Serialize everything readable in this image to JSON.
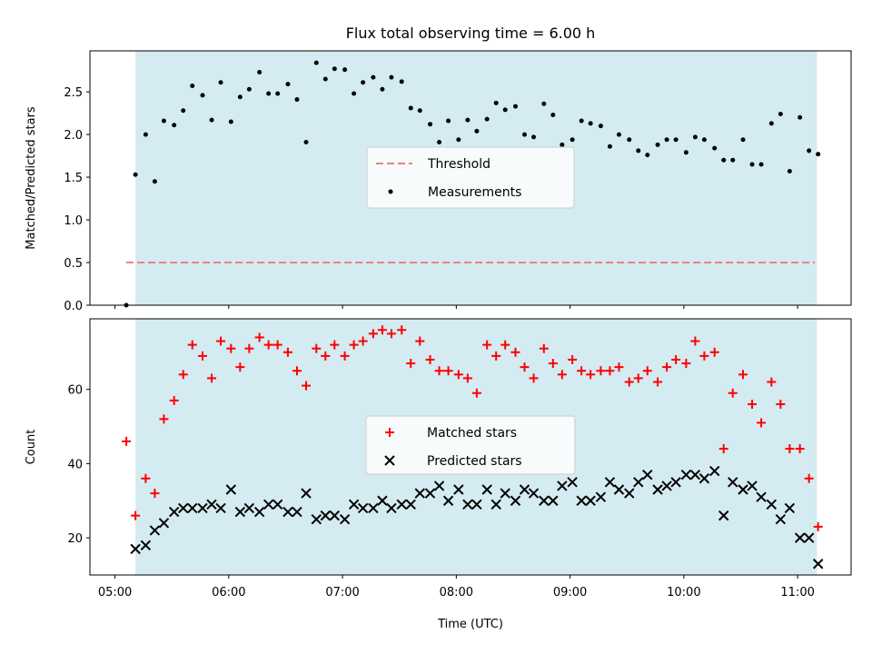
{
  "figure": {
    "title": "Flux total observing time = 6.00 h",
    "xlabel": "Time (UTC)",
    "x_ticks": [
      {
        "h": 5,
        "label": "05:00"
      },
      {
        "h": 6,
        "label": "06:00"
      },
      {
        "h": 7,
        "label": "07:00"
      },
      {
        "h": 8,
        "label": "08:00"
      },
      {
        "h": 9,
        "label": "09:00"
      },
      {
        "h": 10,
        "label": "10:00"
      },
      {
        "h": 11,
        "label": "11:00"
      }
    ],
    "shaded_interval": {
      "start": 5.18,
      "end": 11.17,
      "color": "#d4ebf1"
    }
  },
  "chart_data": [
    {
      "type": "scatter",
      "ylabel": "Matched/Predicted stars",
      "xlim": [
        4.78,
        11.47
      ],
      "ylim": [
        0,
        2.98
      ],
      "y_ticks": [
        {
          "v": 0.0,
          "label": "0.0"
        },
        {
          "v": 0.5,
          "label": "0.5"
        },
        {
          "v": 1.0,
          "label": "1.0"
        },
        {
          "v": 1.5,
          "label": "1.5"
        },
        {
          "v": 2.0,
          "label": "2.0"
        },
        {
          "v": 2.5,
          "label": "2.5"
        }
      ],
      "legend_position": "center",
      "threshold": {
        "name": "Threshold",
        "value": 0.5,
        "x_start": 5.1,
        "x_end": 11.15,
        "color": "#f08080"
      },
      "series": [
        {
          "name": "Measurements",
          "color": "#000000",
          "x": [
            5.1,
            5.18,
            5.27,
            5.35,
            5.43,
            5.52,
            5.6,
            5.68,
            5.77,
            5.85,
            5.93,
            6.02,
            6.1,
            6.18,
            6.27,
            6.35,
            6.43,
            6.52,
            6.6,
            6.68,
            6.77,
            6.85,
            6.93,
            7.02,
            7.1,
            7.18,
            7.27,
            7.35,
            7.43,
            7.52,
            7.6,
            7.68,
            7.77,
            7.85,
            7.93,
            8.02,
            8.1,
            8.18,
            8.27,
            8.35,
            8.43,
            8.52,
            8.6,
            8.68,
            8.77,
            8.85,
            8.93,
            9.02,
            9.1,
            9.18,
            9.27,
            9.35,
            9.43,
            9.52,
            9.6,
            9.68,
            9.77,
            9.85,
            9.93,
            10.02,
            10.1,
            10.18,
            10.27,
            10.35,
            10.43,
            10.52,
            10.6,
            10.68,
            10.77,
            10.85,
            10.93,
            11.02,
            11.1,
            11.18
          ],
          "y": [
            0.0,
            1.53,
            2.0,
            1.45,
            2.16,
            2.11,
            2.28,
            2.57,
            2.46,
            2.17,
            2.61,
            2.15,
            2.44,
            2.53,
            2.73,
            2.48,
            2.48,
            2.59,
            2.41,
            1.91,
            2.84,
            2.65,
            2.77,
            2.76,
            2.48,
            2.61,
            2.67,
            2.53,
            2.67,
            2.62,
            2.31,
            2.28,
            2.12,
            1.91,
            2.16,
            1.94,
            2.17,
            2.04,
            2.18,
            2.37,
            2.29,
            2.33,
            2.0,
            1.97,
            2.36,
            2.23,
            1.88,
            1.94,
            2.16,
            2.13,
            2.1,
            1.86,
            2.0,
            1.94,
            1.81,
            1.76,
            1.88,
            1.94,
            1.94,
            1.79,
            1.97,
            1.94,
            1.84,
            1.7,
            1.7,
            1.94,
            1.65,
            1.65,
            2.13,
            2.24,
            1.57,
            2.2,
            1.81,
            1.77
          ]
        }
      ]
    },
    {
      "type": "scatter",
      "ylabel": "Count",
      "xlim": [
        4.78,
        11.47
      ],
      "ylim": [
        10,
        79
      ],
      "y_ticks": [
        {
          "v": 20,
          "label": "20"
        },
        {
          "v": 40,
          "label": "40"
        },
        {
          "v": 60,
          "label": "60"
        }
      ],
      "legend_position": "center",
      "series": [
        {
          "name": "Matched stars",
          "marker": "plus",
          "color": "#ff0000",
          "x": [
            5.1,
            5.18,
            5.27,
            5.35,
            5.43,
            5.52,
            5.6,
            5.68,
            5.77,
            5.85,
            5.93,
            6.02,
            6.1,
            6.18,
            6.27,
            6.35,
            6.43,
            6.52,
            6.6,
            6.68,
            6.77,
            6.85,
            6.93,
            7.02,
            7.1,
            7.18,
            7.27,
            7.35,
            7.43,
            7.52,
            7.6,
            7.68,
            7.77,
            7.85,
            7.93,
            8.02,
            8.1,
            8.18,
            8.27,
            8.35,
            8.43,
            8.52,
            8.6,
            8.68,
            8.77,
            8.85,
            8.93,
            9.02,
            9.1,
            9.18,
            9.27,
            9.35,
            9.43,
            9.52,
            9.6,
            9.68,
            9.77,
            9.85,
            9.93,
            10.02,
            10.1,
            10.18,
            10.27,
            10.35,
            10.43,
            10.52,
            10.6,
            10.68,
            10.77,
            10.85,
            10.93,
            11.02,
            11.1,
            11.18
          ],
          "y": [
            46,
            26,
            36,
            32,
            52,
            57,
            64,
            72,
            69,
            63,
            73,
            71,
            66,
            71,
            74,
            72,
            72,
            70,
            65,
            61,
            71,
            69,
            72,
            69,
            72,
            73,
            75,
            76,
            75,
            76,
            67,
            73,
            68,
            65,
            65,
            64,
            63,
            59,
            72,
            69,
            72,
            70,
            66,
            63,
            71,
            67,
            64,
            68,
            65,
            64,
            65,
            65,
            66,
            62,
            63,
            65,
            62,
            66,
            68,
            67,
            73,
            69,
            70,
            44,
            59,
            64,
            56,
            51,
            62,
            56,
            44,
            44,
            36,
            23
          ]
        },
        {
          "name": "Predicted stars",
          "marker": "x",
          "color": "#000000",
          "x": [
            5.18,
            5.27,
            5.35,
            5.43,
            5.52,
            5.6,
            5.68,
            5.77,
            5.85,
            5.93,
            6.02,
            6.1,
            6.18,
            6.27,
            6.35,
            6.43,
            6.52,
            6.6,
            6.68,
            6.77,
            6.85,
            6.93,
            7.02,
            7.1,
            7.18,
            7.27,
            7.35,
            7.43,
            7.52,
            7.6,
            7.68,
            7.77,
            7.85,
            7.93,
            8.02,
            8.1,
            8.18,
            8.27,
            8.35,
            8.43,
            8.52,
            8.6,
            8.68,
            8.77,
            8.85,
            8.93,
            9.02,
            9.1,
            9.18,
            9.27,
            9.35,
            9.43,
            9.52,
            9.6,
            9.68,
            9.77,
            9.85,
            9.93,
            10.02,
            10.1,
            10.18,
            10.27,
            10.35,
            10.43,
            10.52,
            10.6,
            10.68,
            10.77,
            10.85,
            10.93,
            11.02,
            11.1,
            11.18
          ],
          "y": [
            17,
            18,
            22,
            24,
            27,
            28,
            28,
            28,
            29,
            28,
            33,
            27,
            28,
            27,
            29,
            29,
            27,
            27,
            32,
            25,
            26,
            26,
            25,
            29,
            28,
            28,
            30,
            28,
            29,
            29,
            32,
            32,
            34,
            30,
            33,
            29,
            29,
            33,
            29,
            32,
            30,
            33,
            32,
            30,
            30,
            34,
            35,
            30,
            30,
            31,
            35,
            33,
            32,
            35,
            37,
            33,
            34,
            35,
            37,
            37,
            36,
            38,
            26,
            35,
            33,
            34,
            31,
            29,
            25,
            28,
            20,
            20,
            13
          ]
        }
      ]
    }
  ]
}
